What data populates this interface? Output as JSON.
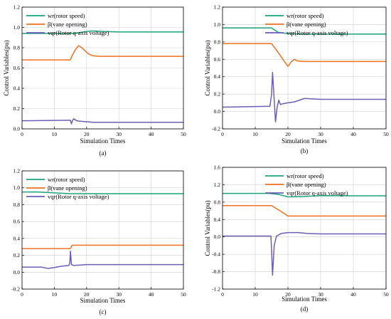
{
  "chart_data": [
    {
      "type": "line",
      "caption": "(a)",
      "xlabel": "Simulation Times",
      "ylabel": "Control Variables(pu)",
      "xlim": [
        0,
        50
      ],
      "ylim": [
        0.0,
        1.2
      ],
      "xticks": [
        0,
        10,
        20,
        30,
        40,
        50
      ],
      "yticks": [
        0.0,
        0.2,
        0.4,
        0.6,
        0.8,
        1.0,
        1.2
      ],
      "yticklabels": [
        "0.0",
        "0.2",
        "0.4",
        "0.6",
        "0.8",
        "1.0",
        "1.2"
      ],
      "grid": true,
      "legend_position": "top-left",
      "series": [
        {
          "name": "wr(rotor speed)",
          "color": "#1aa37a",
          "x": [
            0,
            14,
            16,
            18,
            20,
            22,
            25,
            30,
            40,
            50
          ],
          "y": [
            0.94,
            0.94,
            0.94,
            0.95,
            0.96,
            0.965,
            0.96,
            0.955,
            0.955,
            0.955
          ]
        },
        {
          "name": "β(vane opening)",
          "color": "#f07020",
          "x": [
            0,
            15,
            15.5,
            16.5,
            17.5,
            18.5,
            19.5,
            20.5,
            22,
            24,
            26,
            30,
            40,
            50
          ],
          "y": [
            0.68,
            0.68,
            0.72,
            0.78,
            0.82,
            0.8,
            0.77,
            0.74,
            0.72,
            0.715,
            0.715,
            0.715,
            0.715,
            0.715
          ]
        },
        {
          "name": "vqr(Rotor q-axis voltage)",
          "color": "#6a5fb5",
          "x": [
            0,
            14.5,
            15,
            15.3,
            15.6,
            16,
            16.5,
            17,
            18,
            20,
            22,
            25,
            30,
            40,
            50
          ],
          "y": [
            0.08,
            0.085,
            0.085,
            0.05,
            0.08,
            0.1,
            0.09,
            0.08,
            0.075,
            0.07,
            0.065,
            0.065,
            0.065,
            0.065,
            0.065
          ]
        }
      ]
    },
    {
      "type": "line",
      "caption": "(b)",
      "xlabel": "Simulation Times",
      "ylabel": "Control Variables(pu)",
      "xlim": [
        0,
        50
      ],
      "ylim": [
        -0.2,
        1.2
      ],
      "xticks": [
        0,
        10,
        20,
        30,
        40,
        50
      ],
      "yticks": [
        -0.2,
        0.0,
        0.2,
        0.4,
        0.6,
        0.8,
        1.0,
        1.2
      ],
      "yticklabels": [
        "-0.2",
        "0.0",
        "0.2",
        "0.4",
        "0.6",
        "0.8",
        "1.0",
        "1.2"
      ],
      "grid": true,
      "legend_position": "top-right",
      "series": [
        {
          "name": "wr(rotor speed)",
          "color": "#1aa37a",
          "x": [
            0,
            14,
            15,
            17,
            20,
            25,
            30,
            40,
            50
          ],
          "y": [
            0.96,
            0.96,
            0.96,
            0.91,
            0.895,
            0.89,
            0.89,
            0.89,
            0.89
          ]
        },
        {
          "name": "β(vane opening)",
          "color": "#f07020",
          "x": [
            0,
            15,
            17,
            19,
            20,
            21,
            22,
            23,
            25,
            30,
            40,
            50
          ],
          "y": [
            0.78,
            0.78,
            0.68,
            0.57,
            0.52,
            0.57,
            0.6,
            0.58,
            0.575,
            0.575,
            0.575,
            0.575
          ]
        },
        {
          "name": "vqr(Rotor q-axis voltage)",
          "color": "#6a5fb5",
          "x": [
            0,
            14.5,
            15,
            15.3,
            15.7,
            16.2,
            16.7,
            17.2,
            17.7,
            18.5,
            20,
            22,
            25,
            30,
            40,
            50
          ],
          "y": [
            0.05,
            0.06,
            0.2,
            0.45,
            0.2,
            -0.12,
            0.05,
            0.13,
            0.08,
            0.09,
            0.1,
            0.11,
            0.15,
            0.14,
            0.14,
            0.14
          ]
        }
      ]
    },
    {
      "type": "line",
      "caption": "(c)",
      "xlabel": "Simulation Times",
      "ylabel": "",
      "xlim": [
        0,
        50
      ],
      "ylim": [
        -0.2,
        1.2
      ],
      "xticks": [
        0,
        10,
        20,
        30,
        40,
        50
      ],
      "yticks": [
        -0.2,
        0.0,
        0.2,
        0.4,
        0.6,
        0.8,
        1.0,
        1.2
      ],
      "yticklabels": [
        "-0.2",
        "0.0",
        "0.2",
        "0.4",
        "0.6",
        "0.8",
        "1.0",
        "1.2"
      ],
      "grid": true,
      "legend_position": "top-left",
      "series": [
        {
          "name": "wr(rotor speed)",
          "color": "#1aa37a",
          "x": [
            0,
            5,
            10,
            15,
            20,
            30,
            40,
            50
          ],
          "y": [
            0.95,
            0.95,
            0.94,
            0.93,
            0.93,
            0.93,
            0.93,
            0.93
          ]
        },
        {
          "name": "β(vane opening)",
          "color": "#f07020",
          "x": [
            0,
            15,
            15.5,
            50
          ],
          "y": [
            0.28,
            0.28,
            0.32,
            0.32
          ]
        },
        {
          "name": "vqr(Rotor q-axis voltage)",
          "color": "#6a5fb5",
          "x": [
            0,
            6,
            8,
            10,
            12,
            14.5,
            14.8,
            15,
            15.3,
            16,
            18,
            20,
            25,
            30,
            40,
            50
          ],
          "y": [
            0.06,
            0.06,
            0.045,
            0.055,
            0.07,
            0.08,
            0.11,
            0.25,
            0.09,
            0.08,
            0.085,
            0.09,
            0.09,
            0.09,
            0.09,
            0.09
          ]
        }
      ]
    },
    {
      "type": "line",
      "caption": "(d)",
      "xlabel": "Simulation Times",
      "ylabel": "Control Variables(pu)",
      "xlim": [
        0,
        50
      ],
      "ylim": [
        -1.2,
        1.6
      ],
      "xticks": [
        0,
        10,
        20,
        30,
        40,
        50
      ],
      "yticks": [
        -1.2,
        -0.8,
        -0.4,
        0.0,
        0.4,
        0.8,
        1.2,
        1.6
      ],
      "yticklabels": [
        "-1.2",
        "-0.8",
        "-0.4",
        "0.0",
        "0.4",
        "0.8",
        "1.2",
        "1.6"
      ],
      "grid": true,
      "legend_position": "top-right",
      "series": [
        {
          "name": "wr(rotor speed)",
          "color": "#1aa37a",
          "x": [
            0,
            14,
            17,
            20,
            25,
            30,
            40,
            50
          ],
          "y": [
            1.0,
            1.0,
            0.98,
            0.92,
            0.93,
            0.95,
            0.945,
            0.945
          ]
        },
        {
          "name": "β(vane opening)",
          "color": "#f07020",
          "x": [
            0,
            15,
            18,
            20,
            50
          ],
          "y": [
            0.72,
            0.72,
            0.58,
            0.48,
            0.48
          ]
        },
        {
          "name": "vqr(Rotor q-axis voltage)",
          "color": "#6a5fb5",
          "x": [
            0,
            14.8,
            15,
            15.3,
            15.8,
            16.5,
            18,
            20,
            23,
            26,
            30,
            40,
            50
          ],
          "y": [
            0.02,
            0.02,
            -0.3,
            -0.88,
            -0.2,
            0.02,
            0.08,
            0.1,
            0.1,
            0.08,
            0.07,
            0.07,
            0.07
          ]
        }
      ]
    }
  ]
}
